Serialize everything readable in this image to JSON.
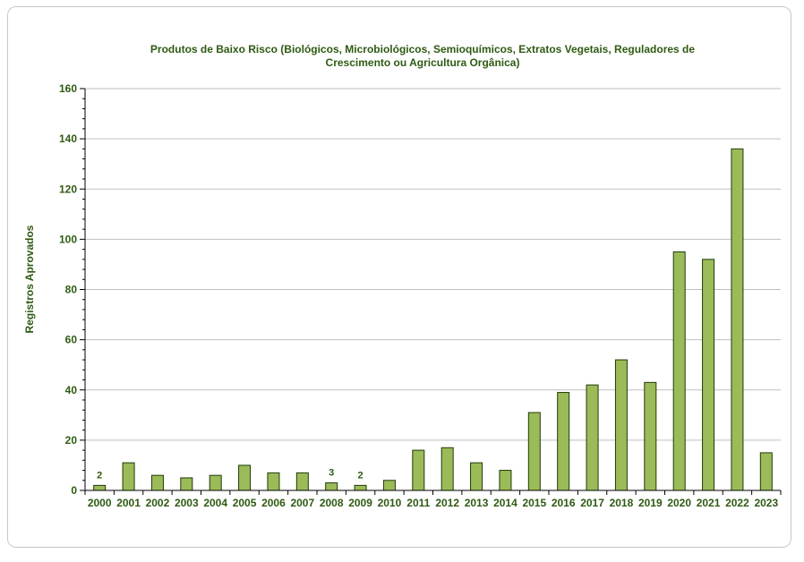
{
  "chart_data": {
    "type": "bar",
    "title_lines": [
      "Produtos de Baixo Risco (Biológicos, Microbiológicos, Semioquímicos, Extratos Vegetais, Reguladores de",
      "Crescimento ou Agricultura Orgânica)"
    ],
    "xlabel": "",
    "ylabel": "Registros Aprovados",
    "ylim": [
      0,
      160
    ],
    "yticks": [
      "0",
      "20",
      "40",
      "60",
      "80",
      "100",
      "120",
      "140",
      "160"
    ],
    "grid": true,
    "legend": "none",
    "categories": [
      "2000",
      "2001",
      "2002",
      "2003",
      "2004",
      "2005",
      "2006",
      "2007",
      "2008",
      "2009",
      "2010",
      "2011",
      "2012",
      "2013",
      "2014",
      "2015",
      "2016",
      "2017",
      "2018",
      "2019",
      "2020",
      "2021",
      "2022",
      "2023"
    ],
    "values": [
      2,
      11,
      6,
      5,
      6,
      10,
      7,
      7,
      3,
      2,
      4,
      16,
      17,
      11,
      8,
      31,
      39,
      42,
      52,
      43,
      95,
      92,
      136,
      15
    ],
    "data_labels": [
      {
        "category": "2000",
        "text": "2"
      },
      {
        "category": "2008",
        "text": "3"
      },
      {
        "category": "2009",
        "text": "2"
      }
    ],
    "colors": {
      "bar_fill": "#9bbb59",
      "bar_stroke": "#1f3a0a",
      "text": "#2e5a12",
      "grid": "#bfbfbf",
      "axis": "#000000"
    }
  }
}
